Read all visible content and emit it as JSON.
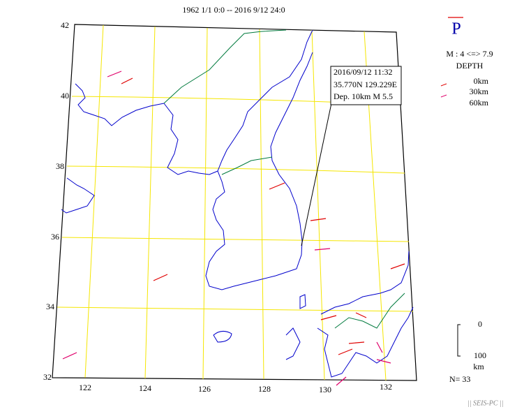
{
  "header": {
    "title": "1962 1/1 0:0 -- 2016 9/12 24:0"
  },
  "map": {
    "latitude_labels": [
      "42",
      "40",
      "38",
      "36",
      "34",
      "32"
    ],
    "longitude_labels": [
      "122",
      "124",
      "126",
      "128",
      "130",
      "132"
    ]
  },
  "callout": {
    "lines": [
      "2016/09/12 11:32",
      "35.770N  129.229E",
      "Dep. 10km    M 5.5"
    ]
  },
  "legend": {
    "symbol": "P",
    "magnitude": "M : 4 <=> 7.9",
    "depth_title": "DEPTH",
    "depths": [
      "0km",
      "30km",
      "60km"
    ]
  },
  "scale": {
    "top": "0",
    "bottom": "100",
    "unit": "km"
  },
  "count": "N= 33",
  "footer": "|| SEIS-PC ||"
}
